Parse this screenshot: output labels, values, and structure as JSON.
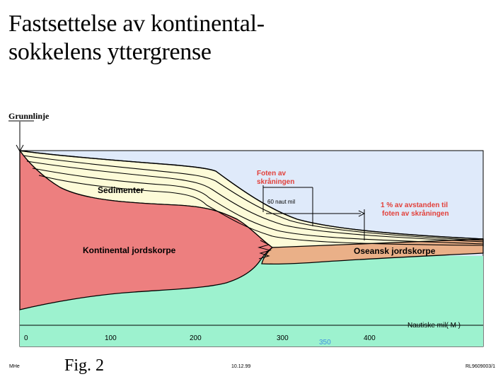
{
  "title": {
    "line1": "Fastsettelse av kontinental-",
    "line2": "sokkelens yttergrense"
  },
  "diagram": {
    "baseline_label": "Grunnlinje",
    "sediments_label": "Sedimenter",
    "continental_crust_label": "Kontinental jordskorpe",
    "oceanic_crust_label": "Oseansk jordskorpe",
    "foot_of_slope_line1": "Foten av",
    "foot_of_slope_line2": "skråningen",
    "sixty_nm_label": "60 naut mil",
    "one_percent_line1": "1 % av avstanden til",
    "one_percent_line2": "foten av skråningen",
    "axis_title": "Nautiske mil( M )",
    "ticks": [
      "0",
      "100",
      "200",
      "300",
      "400"
    ],
    "extra_tick": "350",
    "colors": {
      "sky": "#dfeafa",
      "sediment": "#fdfbd8",
      "continental_crust": "#ed7f7f",
      "oceanic_crust": "#eab088",
      "mantle": "#9df2cf",
      "annotation": "#e2403a",
      "extra_tick": "#3f8fe0"
    }
  },
  "footer": {
    "fig_label": "Fig. 2",
    "author": "MHe",
    "date": "10.12.99",
    "code": "RL9609003/1"
  }
}
